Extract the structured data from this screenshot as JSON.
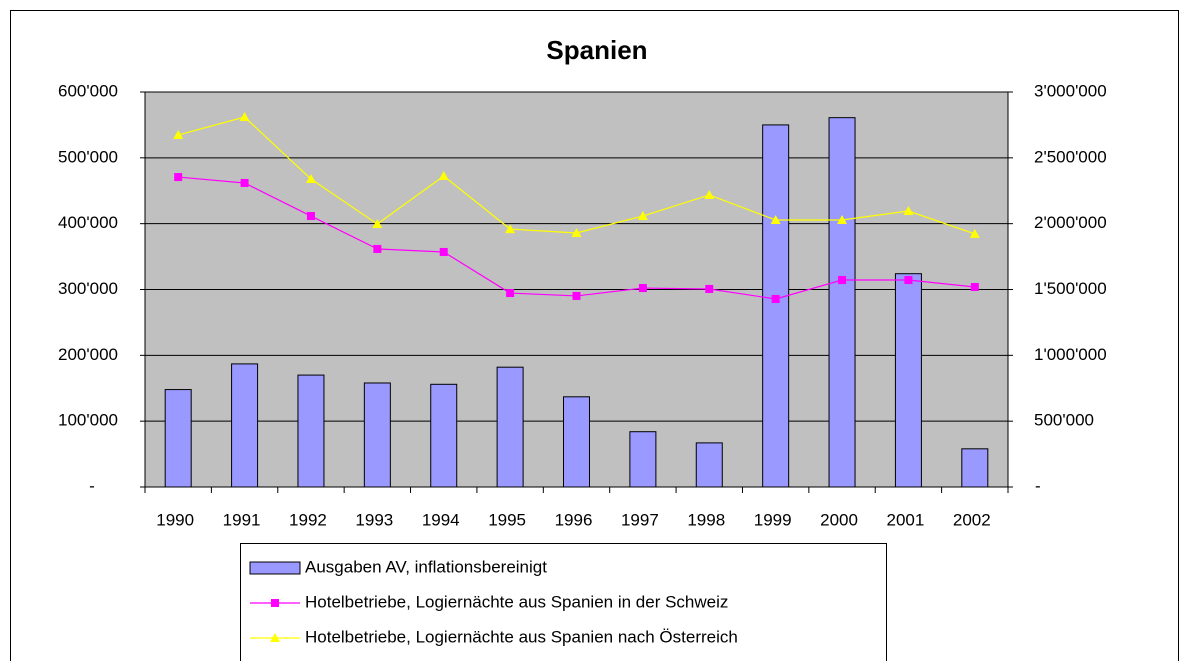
{
  "chart_data": {
    "type": "bar_line",
    "title": "Spanien",
    "categories": [
      "1990",
      "1991",
      "1992",
      "1993",
      "1994",
      "1995",
      "1996",
      "1997",
      "1998",
      "1999",
      "2000",
      "2001",
      "2002"
    ],
    "series": [
      {
        "name": "Ausgaben AV, inflationsbereinigt",
        "type": "bar",
        "color": "#9999ff",
        "axis": "y",
        "values": [
          148000,
          187000,
          170000,
          158000,
          156000,
          182000,
          137000,
          84000,
          67000,
          550000,
          561000,
          324000,
          58000
        ]
      },
      {
        "name": "Hotelbetriebe, Logiernächte aus Spanien in der Schweiz",
        "type": "line",
        "color": "#ff00ff",
        "marker": "square",
        "axis": "y2",
        "values": [
          2354000,
          2309000,
          2058000,
          1808000,
          1785000,
          1473000,
          1451000,
          1511000,
          1504000,
          1428000,
          1572000,
          1572000,
          1519000
        ]
      },
      {
        "name": "Hotelbetriebe, Logiernächte aus Spanien nach Österreich",
        "type": "line",
        "color": "#ffff00",
        "marker": "triangle",
        "axis": "y2",
        "values": [
          2673000,
          2810000,
          2339000,
          1997000,
          2362000,
          1959000,
          1929000,
          2058000,
          2218000,
          2028000,
          2028000,
          2096000,
          1922000
        ]
      }
    ],
    "ylim": [
      0,
      600000
    ],
    "yticks": [
      {
        "value": 0,
        "label": "-"
      },
      {
        "value": 100000,
        "label": "100'000"
      },
      {
        "value": 200000,
        "label": "200'000"
      },
      {
        "value": 300000,
        "label": "300'000"
      },
      {
        "value": 400000,
        "label": "400'000"
      },
      {
        "value": 500000,
        "label": "500'000"
      },
      {
        "value": 600000,
        "label": "600'000"
      }
    ],
    "y2lim": [
      0,
      3000000
    ],
    "y2ticks": [
      {
        "value": 0,
        "label": "-"
      },
      {
        "value": 500000,
        "label": "500'000"
      },
      {
        "value": 1000000,
        "label": "1'000'000"
      },
      {
        "value": 1500000,
        "label": "1'500'000"
      },
      {
        "value": 2000000,
        "label": "2'000'000"
      },
      {
        "value": 2500000,
        "label": "2'500'000"
      },
      {
        "value": 3000000,
        "label": "3'000'000"
      }
    ],
    "grid": true,
    "plot_background": "#c0c0c0",
    "legend": "bottom"
  }
}
